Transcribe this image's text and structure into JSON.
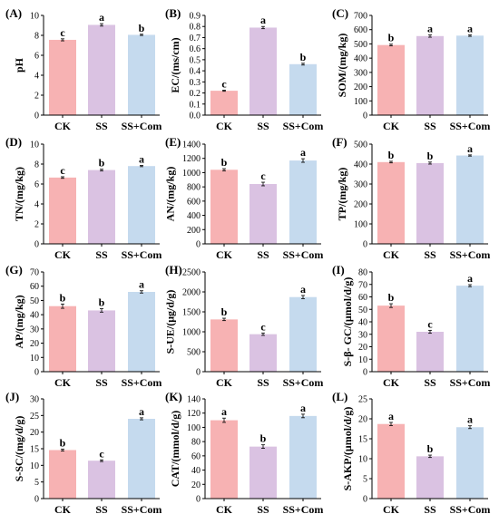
{
  "colors": {
    "CK": "#F7B2B3",
    "SS": "#DAC2E2",
    "SS+Com": "#C5DAEE"
  },
  "chart_data": [
    {
      "type": "bar",
      "panel": "(A)",
      "ylabel": "pH",
      "categories": [
        "CK",
        "SS",
        "SS+Com"
      ],
      "values": [
        7.55,
        9.05,
        8.05
      ],
      "errors": [
        0.1,
        0.12,
        0.06
      ],
      "letters": [
        "c",
        "a",
        "b"
      ],
      "ylim": [
        0,
        10
      ],
      "yticks": [
        0,
        2,
        4,
        6,
        8,
        10
      ],
      "tick_labels": [
        "0",
        "2",
        "4",
        "6",
        "8",
        "10"
      ]
    },
    {
      "type": "bar",
      "panel": "(B)",
      "ylabel": "EC/(ms/cm)",
      "categories": [
        "CK",
        "SS",
        "SS+Com"
      ],
      "values": [
        0.22,
        0.79,
        0.46
      ],
      "errors": [
        0.005,
        0.01,
        0.008
      ],
      "letters": [
        "c",
        "a",
        "b"
      ],
      "ylim": [
        0,
        0.9
      ],
      "yticks": [
        0,
        0.1,
        0.2,
        0.3,
        0.4,
        0.5,
        0.6,
        0.7,
        0.8,
        0.9
      ],
      "tick_labels": [
        "0.0",
        "0.1",
        "0.2",
        "0.3",
        "0.4",
        "0.5",
        "0.6",
        "0.7",
        "0.8",
        "0.9"
      ]
    },
    {
      "type": "bar",
      "panel": "(C)",
      "ylabel": "SOM/(mg/kg)",
      "categories": [
        "CK",
        "SS",
        "SS+Com"
      ],
      "values": [
        492,
        555,
        558
      ],
      "errors": [
        6,
        8,
        5
      ],
      "letters": [
        "b",
        "a",
        "a"
      ],
      "ylim": [
        0,
        700
      ],
      "yticks": [
        0,
        100,
        200,
        300,
        400,
        500,
        600,
        700
      ],
      "tick_labels": [
        "0",
        "100",
        "200",
        "300",
        "400",
        "500",
        "600",
        "700"
      ]
    },
    {
      "type": "bar",
      "panel": "(D)",
      "ylabel": "TN/(mg/kg)",
      "categories": [
        "CK",
        "SS",
        "SS+Com"
      ],
      "values": [
        6.65,
        7.4,
        7.8
      ],
      "errors": [
        0.08,
        0.08,
        0.06
      ],
      "letters": [
        "c",
        "b",
        "a"
      ],
      "ylim": [
        0,
        10
      ],
      "yticks": [
        0,
        2,
        4,
        6,
        8,
        10
      ],
      "tick_labels": [
        "0",
        "2",
        "4",
        "6",
        "8",
        "10"
      ]
    },
    {
      "type": "bar",
      "panel": "(E)",
      "ylabel": "AN/(mg/kg)",
      "categories": [
        "CK",
        "SS",
        "SS+Com"
      ],
      "values": [
        1040,
        840,
        1170
      ],
      "errors": [
        15,
        25,
        25
      ],
      "letters": [
        "b",
        "c",
        "a"
      ],
      "ylim": [
        0,
        1400
      ],
      "yticks": [
        0,
        200,
        400,
        600,
        800,
        1000,
        1200,
        1400
      ],
      "tick_labels": [
        "0",
        "200",
        "400",
        "600",
        "800",
        "1000",
        "1200",
        "1400"
      ]
    },
    {
      "type": "bar",
      "panel": "(F)",
      "ylabel": "TP/(mg/kg)",
      "categories": [
        "CK",
        "SS",
        "SS+Com"
      ],
      "values": [
        410,
        405,
        443
      ],
      "errors": [
        4,
        5,
        3
      ],
      "letters": [
        "b",
        "b",
        "a"
      ],
      "ylim": [
        0,
        500
      ],
      "yticks": [
        0,
        100,
        200,
        300,
        400,
        500
      ],
      "tick_labels": [
        "0",
        "100",
        "200",
        "300",
        "400",
        "500"
      ]
    },
    {
      "type": "bar",
      "panel": "(G)",
      "ylabel": "AP/(mg/kg)",
      "categories": [
        "CK",
        "SS",
        "SS+Com"
      ],
      "values": [
        46,
        43,
        56
      ],
      "errors": [
        1.5,
        1.2,
        0.8
      ],
      "letters": [
        "b",
        "b",
        "a"
      ],
      "ylim": [
        0,
        70
      ],
      "yticks": [
        0,
        10,
        20,
        30,
        40,
        50,
        60,
        70
      ],
      "tick_labels": [
        "0",
        "10",
        "20",
        "30",
        "40",
        "50",
        "60",
        "70"
      ]
    },
    {
      "type": "bar",
      "panel": "(H)",
      "ylabel": "S-UE/(μg/d/g)",
      "categories": [
        "CK",
        "SS",
        "SS+Com"
      ],
      "values": [
        1310,
        940,
        1870
      ],
      "errors": [
        30,
        30,
        40
      ],
      "letters": [
        "b",
        "c",
        "a"
      ],
      "ylim": [
        0,
        2500
      ],
      "yticks": [
        0,
        500,
        1000,
        1500,
        2000,
        2500
      ],
      "tick_labels": [
        "0",
        "500",
        "1000",
        "1500",
        "2000",
        "2500"
      ]
    },
    {
      "type": "bar",
      "panel": "(I)",
      "ylabel": "S-β- GC/(μmol/d/g)",
      "categories": [
        "CK",
        "SS",
        "SS+Com"
      ],
      "values": [
        53,
        32,
        69
      ],
      "errors": [
        1.5,
        1.2,
        0.8
      ],
      "letters": [
        "b",
        "c",
        "a"
      ],
      "ylim": [
        0,
        80
      ],
      "yticks": [
        0,
        10,
        20,
        30,
        40,
        50,
        60,
        70,
        80
      ],
      "tick_labels": [
        "0",
        "10",
        "20",
        "30",
        "40",
        "50",
        "60",
        "70",
        "80"
      ]
    },
    {
      "type": "bar",
      "panel": "(J)",
      "ylabel": "S-SC/(mg/d/g)",
      "categories": [
        "CK",
        "SS",
        "SS+Com"
      ],
      "values": [
        14.6,
        11.4,
        24.0
      ],
      "errors": [
        0.3,
        0.25,
        0.3
      ],
      "letters": [
        "b",
        "c",
        "a"
      ],
      "ylim": [
        0,
        30
      ],
      "yticks": [
        0,
        5,
        10,
        15,
        20,
        25,
        30
      ],
      "tick_labels": [
        "0",
        "5",
        "10",
        "15",
        "20",
        "25",
        "30"
      ]
    },
    {
      "type": "bar",
      "panel": "(K)",
      "ylabel": "CAT/(mmol/d/g)",
      "categories": [
        "CK",
        "SS",
        "SS+Com"
      ],
      "values": [
        110,
        73,
        116
      ],
      "errors": [
        3,
        2.5,
        2.5
      ],
      "letters": [
        "a",
        "b",
        "a"
      ],
      "ylim": [
        0,
        140
      ],
      "yticks": [
        0,
        20,
        40,
        60,
        80,
        100,
        120,
        140
      ],
      "tick_labels": [
        "0",
        "20",
        "40",
        "60",
        "80",
        "100",
        "120",
        "140"
      ]
    },
    {
      "type": "bar",
      "panel": "(L)",
      "ylabel": "S-AKP/(μmol/d/g)",
      "categories": [
        "CK",
        "SS",
        "SS+Com"
      ],
      "values": [
        18.7,
        10.6,
        17.9
      ],
      "errors": [
        0.4,
        0.3,
        0.35
      ],
      "letters": [
        "a",
        "b",
        "a"
      ],
      "ylim": [
        0,
        25
      ],
      "yticks": [
        0,
        5,
        10,
        15,
        20,
        25
      ],
      "tick_labels": [
        "0",
        "5",
        "10",
        "15",
        "20",
        "25"
      ]
    }
  ]
}
